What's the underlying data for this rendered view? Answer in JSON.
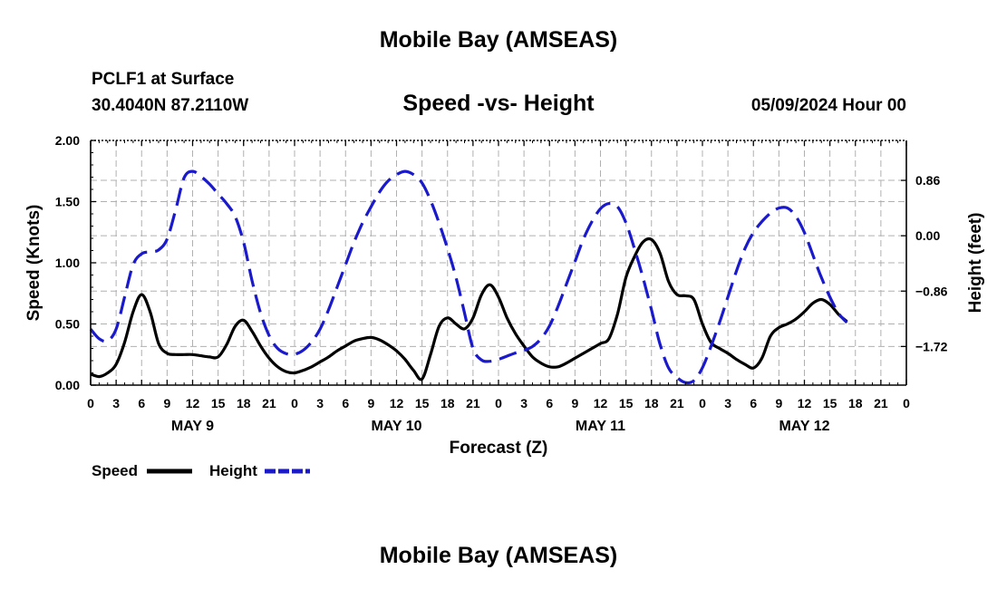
{
  "header": {
    "title": "Mobile Bay (AMSEAS)",
    "station": "PCLF1 at Surface",
    "coords": "30.4040N  87.2110W",
    "subtitle": "Speed -vs- Height",
    "datetime": "05/09/2024 Hour 00"
  },
  "footer": {
    "title": "Mobile Bay (AMSEAS)"
  },
  "chart_data": {
    "type": "line",
    "title": "Speed -vs- Height",
    "xlabel": "Forecast (Z)",
    "ylabel": "Speed (Knots)",
    "y2label": "Height (feet)",
    "xlim": [
      0,
      96
    ],
    "ylim": [
      0,
      2
    ],
    "y2lim": [
      -2.32,
      1.48
    ],
    "yticks": [
      "0.00",
      "0.50",
      "1.00",
      "1.50",
      "2.00"
    ],
    "y2ticks": [
      {
        "value": 0.86,
        "label": "0.86"
      },
      {
        "value": 0.0,
        "label": "0.00"
      },
      {
        "value": -0.86,
        "label": "−0.86"
      },
      {
        "value": -1.72,
        "label": "−1.72"
      }
    ],
    "xticks": [
      "0",
      "3",
      "6",
      "9",
      "12",
      "15",
      "18",
      "21",
      "0",
      "3",
      "6",
      "9",
      "12",
      "15",
      "18",
      "21",
      "0",
      "3",
      "6",
      "9",
      "12",
      "15",
      "18",
      "21",
      "0",
      "3",
      "6",
      "9",
      "12",
      "15",
      "18",
      "21",
      "0"
    ],
    "day_labels": [
      {
        "label": "MAY 9",
        "hour": 12
      },
      {
        "label": "MAY 10",
        "hour": 36
      },
      {
        "label": "MAY 11",
        "hour": 60
      },
      {
        "label": "MAY 12",
        "hour": 84
      }
    ],
    "grid": true,
    "legend": [
      {
        "name": "Speed",
        "color": "#000000",
        "style": "solid"
      },
      {
        "name": "Height",
        "color": "#1a1acc",
        "style": "dashed"
      }
    ],
    "series": [
      {
        "name": "Speed",
        "axis": "left",
        "color": "#000000",
        "style": "solid",
        "points": [
          [
            0,
            0.09
          ],
          [
            1,
            0.07
          ],
          [
            2,
            0.1
          ],
          [
            3,
            0.17
          ],
          [
            4,
            0.35
          ],
          [
            5,
            0.6
          ],
          [
            6,
            0.74
          ],
          [
            7,
            0.6
          ],
          [
            8,
            0.34
          ],
          [
            9,
            0.26
          ],
          [
            10,
            0.25
          ],
          [
            11,
            0.25
          ],
          [
            12,
            0.25
          ],
          [
            13,
            0.24
          ],
          [
            14,
            0.23
          ],
          [
            15,
            0.23
          ],
          [
            16,
            0.33
          ],
          [
            17,
            0.48
          ],
          [
            18,
            0.53
          ],
          [
            19,
            0.44
          ],
          [
            20,
            0.32
          ],
          [
            21,
            0.22
          ],
          [
            22,
            0.15
          ],
          [
            23,
            0.11
          ],
          [
            24,
            0.1
          ],
          [
            25,
            0.12
          ],
          [
            26,
            0.15
          ],
          [
            27,
            0.19
          ],
          [
            28,
            0.23
          ],
          [
            29,
            0.28
          ],
          [
            30,
            0.32
          ],
          [
            31,
            0.36
          ],
          [
            32,
            0.38
          ],
          [
            33,
            0.39
          ],
          [
            34,
            0.37
          ],
          [
            35,
            0.33
          ],
          [
            36,
            0.28
          ],
          [
            37,
            0.21
          ],
          [
            38,
            0.12
          ],
          [
            39,
            0.05
          ],
          [
            40,
            0.25
          ],
          [
            41,
            0.48
          ],
          [
            42,
            0.55
          ],
          [
            43,
            0.5
          ],
          [
            44,
            0.46
          ],
          [
            45,
            0.55
          ],
          [
            46,
            0.74
          ],
          [
            47,
            0.82
          ],
          [
            48,
            0.72
          ],
          [
            49,
            0.55
          ],
          [
            50,
            0.42
          ],
          [
            51,
            0.32
          ],
          [
            52,
            0.23
          ],
          [
            53,
            0.18
          ],
          [
            54,
            0.15
          ],
          [
            55,
            0.15
          ],
          [
            56,
            0.18
          ],
          [
            57,
            0.22
          ],
          [
            58,
            0.26
          ],
          [
            59,
            0.3
          ],
          [
            60,
            0.34
          ],
          [
            61,
            0.38
          ],
          [
            62,
            0.58
          ],
          [
            63,
            0.88
          ],
          [
            64,
            1.05
          ],
          [
            65,
            1.17
          ],
          [
            66,
            1.19
          ],
          [
            67,
            1.08
          ],
          [
            68,
            0.85
          ],
          [
            69,
            0.74
          ],
          [
            70,
            0.73
          ],
          [
            71,
            0.7
          ],
          [
            72,
            0.5
          ],
          [
            73,
            0.35
          ],
          [
            74,
            0.3
          ],
          [
            75,
            0.26
          ],
          [
            76,
            0.21
          ],
          [
            77,
            0.17
          ],
          [
            78,
            0.14
          ],
          [
            79,
            0.22
          ],
          [
            80,
            0.4
          ],
          [
            81,
            0.47
          ],
          [
            82,
            0.5
          ],
          [
            83,
            0.54
          ],
          [
            84,
            0.6
          ],
          [
            85,
            0.67
          ],
          [
            86,
            0.7
          ],
          [
            87,
            0.66
          ],
          [
            88,
            0.58
          ],
          [
            89,
            0.52
          ]
        ]
      },
      {
        "name": "Height",
        "axis": "right",
        "color": "#1a1acc",
        "style": "dashed",
        "points": [
          [
            0,
            -1.45
          ],
          [
            1,
            -1.6
          ],
          [
            2,
            -1.63
          ],
          [
            3,
            -1.45
          ],
          [
            4,
            -0.95
          ],
          [
            5,
            -0.45
          ],
          [
            6,
            -0.28
          ],
          [
            7,
            -0.25
          ],
          [
            8,
            -0.22
          ],
          [
            9,
            -0.05
          ],
          [
            10,
            0.4
          ],
          [
            11,
            0.9
          ],
          [
            12,
            1.0
          ],
          [
            13,
            0.92
          ],
          [
            14,
            0.8
          ],
          [
            15,
            0.65
          ],
          [
            16,
            0.5
          ],
          [
            17,
            0.3
          ],
          [
            18,
            -0.1
          ],
          [
            19,
            -0.7
          ],
          [
            20,
            -1.2
          ],
          [
            21,
            -1.55
          ],
          [
            22,
            -1.75
          ],
          [
            23,
            -1.83
          ],
          [
            24,
            -1.84
          ],
          [
            25,
            -1.78
          ],
          [
            26,
            -1.65
          ],
          [
            27,
            -1.45
          ],
          [
            28,
            -1.15
          ],
          [
            29,
            -0.8
          ],
          [
            30,
            -0.45
          ],
          [
            31,
            -0.1
          ],
          [
            32,
            0.2
          ],
          [
            33,
            0.45
          ],
          [
            34,
            0.68
          ],
          [
            35,
            0.85
          ],
          [
            36,
            0.95
          ],
          [
            37,
            1.0
          ],
          [
            38,
            0.95
          ],
          [
            39,
            0.82
          ],
          [
            40,
            0.55
          ],
          [
            41,
            0.2
          ],
          [
            42,
            -0.2
          ],
          [
            43,
            -0.65
          ],
          [
            44,
            -1.2
          ],
          [
            45,
            -1.75
          ],
          [
            46,
            -1.93
          ],
          [
            47,
            -1.95
          ],
          [
            48,
            -1.92
          ],
          [
            49,
            -1.87
          ],
          [
            50,
            -1.82
          ],
          [
            51,
            -1.78
          ],
          [
            52,
            -1.72
          ],
          [
            53,
            -1.6
          ],
          [
            54,
            -1.4
          ],
          [
            55,
            -1.1
          ],
          [
            56,
            -0.75
          ],
          [
            57,
            -0.4
          ],
          [
            58,
            -0.05
          ],
          [
            59,
            0.22
          ],
          [
            60,
            0.42
          ],
          [
            61,
            0.5
          ],
          [
            62,
            0.45
          ],
          [
            63,
            0.2
          ],
          [
            64,
            -0.2
          ],
          [
            65,
            -0.65
          ],
          [
            66,
            -1.15
          ],
          [
            67,
            -1.68
          ],
          [
            68,
            -2.05
          ],
          [
            69,
            -2.2
          ],
          [
            70,
            -2.28
          ],
          [
            71,
            -2.25
          ],
          [
            72,
            -2.05
          ],
          [
            73,
            -1.72
          ],
          [
            74,
            -1.35
          ],
          [
            75,
            -0.95
          ],
          [
            76,
            -0.55
          ],
          [
            77,
            -0.2
          ],
          [
            78,
            0.05
          ],
          [
            79,
            0.22
          ],
          [
            80,
            0.35
          ],
          [
            81,
            0.43
          ],
          [
            82,
            0.43
          ],
          [
            83,
            0.3
          ],
          [
            84,
            0.05
          ],
          [
            85,
            -0.3
          ],
          [
            86,
            -0.65
          ],
          [
            87,
            -0.95
          ],
          [
            88,
            -1.2
          ],
          [
            89,
            -1.35
          ]
        ]
      }
    ]
  }
}
